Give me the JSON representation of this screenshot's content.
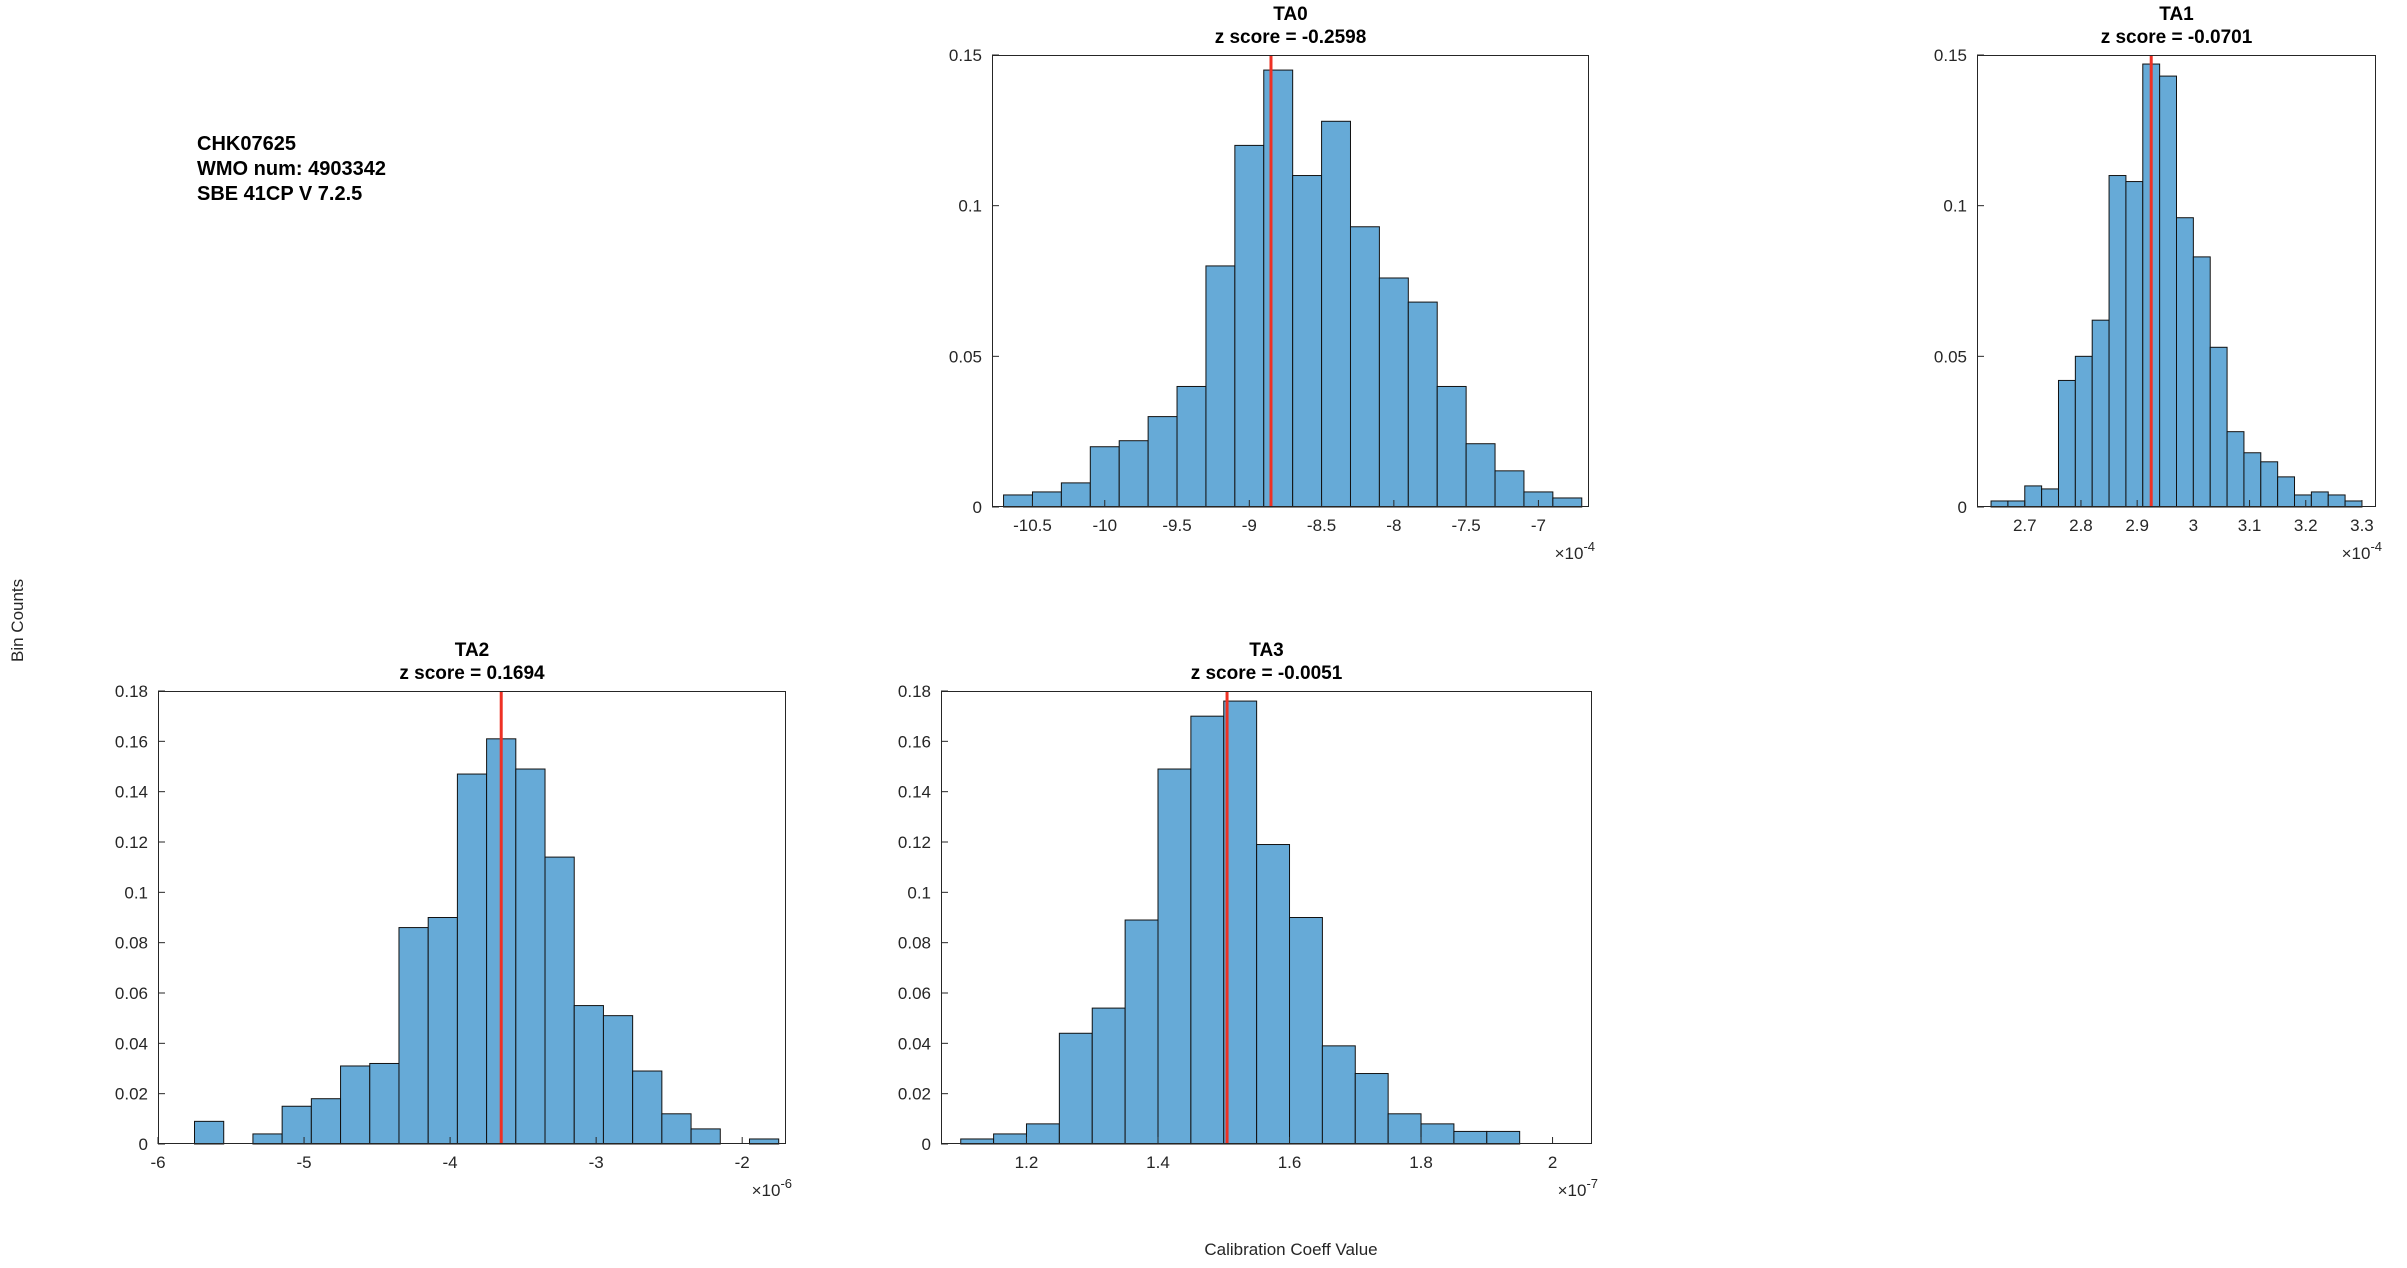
{
  "annotation": {
    "line1": "CHK07625",
    "line2": "WMO num: 4903342",
    "line3": "SBE 41CP V 7.2.5"
  },
  "axis_labels": {
    "x": "Calibration Coeff Value",
    "y": "Bin Counts"
  },
  "colors": {
    "bar_fill": "#66aad7",
    "bar_edge": "#111111",
    "red_line": "#ee3124",
    "axis": "#262626",
    "background": "#ffffff"
  },
  "chart_data": [
    {
      "type": "bar",
      "title": "TA0",
      "subtitle": "z score = -0.2598",
      "bin_start": -10.7,
      "bin_width": 0.2,
      "values": [
        0.004,
        0.005,
        0.008,
        0.02,
        0.022,
        0.03,
        0.04,
        0.08,
        0.12,
        0.145,
        0.11,
        0.128,
        0.093,
        0.076,
        0.068,
        0.04,
        0.021,
        0.012,
        0.005,
        0.003
      ],
      "red_line_x": -8.85,
      "xlim": [
        -10.78,
        -6.65
      ],
      "ylim": [
        0,
        0.15
      ],
      "xticks": [
        "-10.5",
        "-10",
        "-9.5",
        "-9",
        "-8.5",
        "-8",
        "-7.5",
        "-7"
      ],
      "yticks": [
        "0",
        "0.05",
        "0.1",
        "0.15"
      ],
      "exp": "-4",
      "grid": "off",
      "legend": "none"
    },
    {
      "type": "bar",
      "title": "TA1",
      "subtitle": "z score = -0.0701",
      "bin_start": 2.64,
      "bin_width": 0.03,
      "values": [
        0.002,
        0.002,
        0.007,
        0.006,
        0.042,
        0.05,
        0.062,
        0.11,
        0.108,
        0.147,
        0.143,
        0.096,
        0.083,
        0.053,
        0.025,
        0.018,
        0.015,
        0.01,
        0.004,
        0.005,
        0.004,
        0.002
      ],
      "red_line_x": 2.925,
      "xlim": [
        2.615,
        3.325
      ],
      "ylim": [
        0,
        0.15
      ],
      "xticks": [
        "2.7",
        "2.8",
        "2.9",
        "3",
        "3.1",
        "3.2",
        "3.3"
      ],
      "yticks": [
        "0",
        "0.05",
        "0.1",
        "0.15"
      ],
      "exp": "-4",
      "grid": "off",
      "legend": "none"
    },
    {
      "type": "bar",
      "title": "TA2",
      "subtitle": "z score = 0.1694",
      "bin_start": -5.75,
      "bin_width": 0.2,
      "values": [
        0.009,
        0,
        0.004,
        0.015,
        0.018,
        0.031,
        0.032,
        0.086,
        0.09,
        0.147,
        0.161,
        0.149,
        0.114,
        0.055,
        0.051,
        0.029,
        0.012,
        0.006,
        0,
        0.002
      ],
      "red_line_x": -3.65,
      "xlim": [
        -6,
        -1.7
      ],
      "ylim": [
        0,
        0.18
      ],
      "xticks": [
        "-6",
        "-5",
        "-4",
        "-3",
        "-2"
      ],
      "yticks": [
        "0",
        "0.02",
        "0.04",
        "0.06",
        "0.08",
        "0.1",
        "0.12",
        "0.14",
        "0.16",
        "0.18"
      ],
      "exp": "-6",
      "grid": "off",
      "legend": "none"
    },
    {
      "type": "bar",
      "title": "TA3",
      "subtitle": "z score = -0.0051",
      "bin_start": 1.1,
      "bin_width": 0.05,
      "values": [
        0.002,
        0.004,
        0.008,
        0.044,
        0.054,
        0.089,
        0.149,
        0.17,
        0.176,
        0.119,
        0.09,
        0.039,
        0.028,
        0.012,
        0.008,
        0.005,
        0.005
      ],
      "red_line_x": 1.505,
      "xlim": [
        1.07,
        2.06
      ],
      "ylim": [
        0,
        0.18
      ],
      "xticks": [
        "1.2",
        "1.4",
        "1.6",
        "1.8",
        "2"
      ],
      "yticks": [
        "0",
        "0.02",
        "0.04",
        "0.06",
        "0.08",
        "0.1",
        "0.12",
        "0.14",
        "0.16",
        "0.18"
      ],
      "exp": "-7",
      "grid": "off",
      "legend": "none"
    }
  ]
}
